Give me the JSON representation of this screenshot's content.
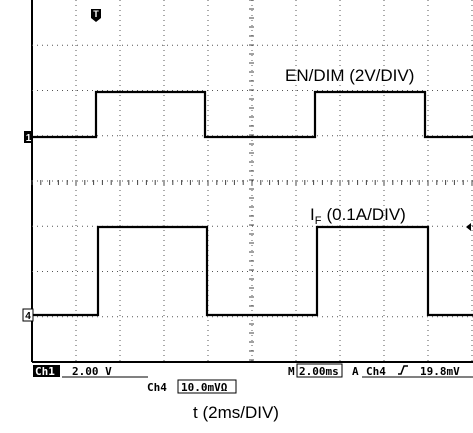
{
  "screen": {
    "trace_1_label": "EN/DIM (2V/DIV)",
    "trace_2_label": {
      "symbol": "I",
      "subscript": "F",
      "scale": "(0.1A/DIV)"
    },
    "channel_1_marker": "1",
    "channel_4_marker": "4",
    "trigger_marker": "T"
  },
  "status": {
    "channel_1": "Ch1",
    "channel_1_scale": "2.00 V",
    "channel_4": "Ch4",
    "channel_4_scale": "10.0mVΩ",
    "time_prefix": "M",
    "time_scale": "2.00ms",
    "trigger_prefix": "A",
    "trigger_source": "Ch4",
    "trigger_level": "19.8mV"
  },
  "x_axis_label": "t (2ms/DIV)"
}
